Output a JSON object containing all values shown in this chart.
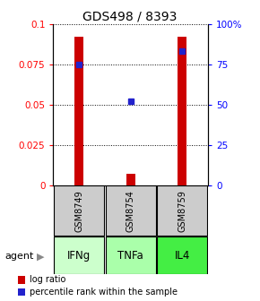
{
  "title": "GDS498 / 8393",
  "samples": [
    "GSM8749",
    "GSM8754",
    "GSM8759"
  ],
  "agents": [
    "IFNg",
    "TNFa",
    "IL4"
  ],
  "log_ratio": [
    0.092,
    0.007,
    0.092
  ],
  "percentile_rank_pct": [
    75,
    52,
    83
  ],
  "bar_color": "#cc0000",
  "dot_color": "#2222cc",
  "left_yticks": [
    0,
    0.025,
    0.05,
    0.075,
    0.1
  ],
  "left_ylabels": [
    "0",
    "0.025",
    "0.05",
    "0.075",
    "0.1"
  ],
  "right_yticks": [
    0,
    25,
    50,
    75,
    100
  ],
  "right_ylabels": [
    "0",
    "25",
    "50",
    "75",
    "100%"
  ],
  "ylim": [
    0,
    0.1
  ],
  "agent_colors": [
    "#ccffcc",
    "#aaffaa",
    "#44ee44"
  ],
  "sample_bg": "#cccccc",
  "legend_log": "log ratio",
  "legend_pct": "percentile rank within the sample"
}
